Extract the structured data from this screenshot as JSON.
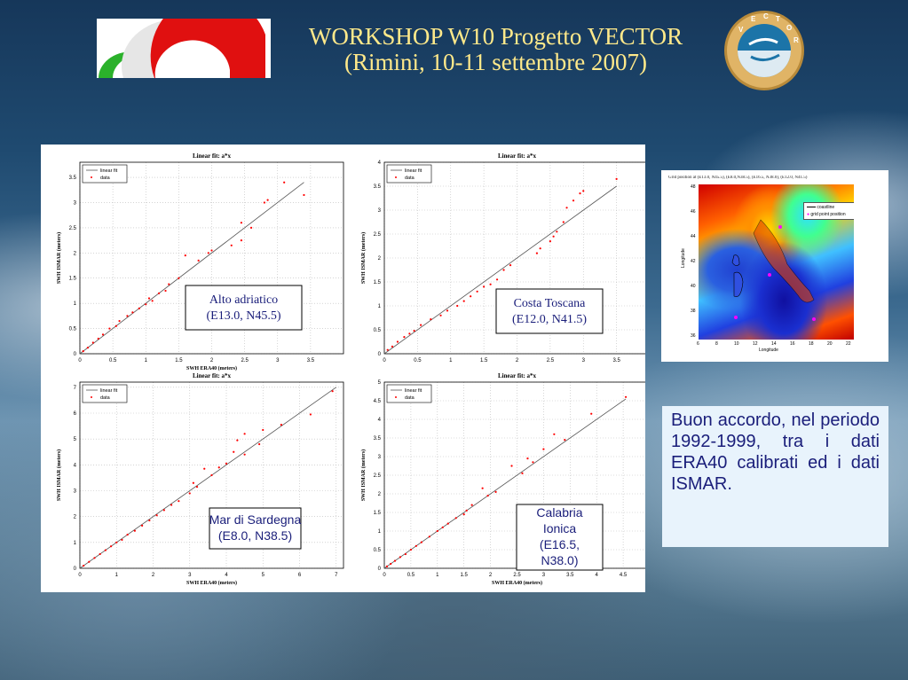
{
  "header": {
    "title_line1": "WORKSHOP W10  Progetto VECTOR",
    "title_line2": "(Rimini, 10-11 settembre 2007)",
    "logo_right_letters": [
      "V",
      "E",
      "C",
      "T",
      "O",
      "R"
    ]
  },
  "colors": {
    "title": "#ffe98a",
    "data_points": "#ff0000",
    "fit_line": "#555555",
    "body_text": "#1a1e7a",
    "text_box_bg": "#e8f3fc"
  },
  "chart_data": [
    {
      "type": "scatter",
      "title": "Linear fit: a*x",
      "xlabel": "SWH ERA40 (meters)",
      "ylabel": "SWH ISMAR (meters)",
      "legend": [
        "linear fit",
        "data"
      ],
      "legend_position": "top-left",
      "grid": true,
      "annotation_line1": "Alto adriatico",
      "annotation_line2": "(E13.0, N45.5)",
      "annotation_font": "serif",
      "xlim": [
        0,
        4
      ],
      "ylim": [
        0,
        3.8
      ],
      "xticks": [
        "0",
        "0.5",
        "1",
        "1.5",
        "2",
        "2.5",
        "3",
        "3.5"
      ],
      "yticks": [
        "0",
        "0.5",
        "1",
        "1.5",
        "2",
        "2.5",
        "3",
        "3.5"
      ],
      "fit": [
        [
          0,
          0
        ],
        [
          3.4,
          3.4
        ]
      ],
      "points": [
        [
          0.05,
          0.05
        ],
        [
          0.12,
          0.12
        ],
        [
          0.2,
          0.22
        ],
        [
          0.28,
          0.3
        ],
        [
          0.35,
          0.38
        ],
        [
          0.45,
          0.5
        ],
        [
          0.55,
          0.55
        ],
        [
          0.6,
          0.65
        ],
        [
          0.72,
          0.75
        ],
        [
          0.8,
          0.82
        ],
        [
          0.9,
          0.9
        ],
        [
          1.0,
          0.98
        ],
        [
          1.05,
          1.1
        ],
        [
          1.1,
          1.05
        ],
        [
          1.2,
          1.2
        ],
        [
          1.3,
          1.25
        ],
        [
          1.35,
          1.38
        ],
        [
          1.5,
          1.5
        ],
        [
          1.6,
          1.95
        ],
        [
          1.8,
          1.85
        ],
        [
          1.95,
          2.0
        ],
        [
          2.0,
          2.05
        ],
        [
          2.3,
          2.15
        ],
        [
          2.45,
          2.25
        ],
        [
          2.45,
          2.6
        ],
        [
          2.6,
          2.5
        ],
        [
          2.8,
          3.0
        ],
        [
          2.85,
          3.05
        ],
        [
          3.1,
          3.4
        ],
        [
          3.4,
          3.15
        ]
      ]
    },
    {
      "type": "scatter",
      "title": "Linear fit: a*x",
      "xlabel": "",
      "ylabel": "SWH ISMAR (meters)",
      "legend": [
        "linear fit",
        "data"
      ],
      "legend_position": "top-left",
      "grid": true,
      "annotation_line1": "Costa Toscana",
      "annotation_line2": "(E12.0, N41.5)",
      "annotation_font": "serif",
      "xlim": [
        0,
        4
      ],
      "ylim": [
        0,
        4
      ],
      "xticks": [
        "0",
        "0.5",
        "1",
        "1.5",
        "2",
        "2.5",
        "3",
        "3.5",
        "4"
      ],
      "yticks": [
        "0",
        "0.5",
        "1",
        "1.5",
        "2",
        "2.5",
        "3",
        "3.5",
        "4"
      ],
      "fit": [
        [
          0,
          0
        ],
        [
          3.5,
          3.5
        ]
      ],
      "points": [
        [
          0.05,
          0.08
        ],
        [
          0.12,
          0.15
        ],
        [
          0.2,
          0.25
        ],
        [
          0.3,
          0.35
        ],
        [
          0.38,
          0.42
        ],
        [
          0.45,
          0.48
        ],
        [
          0.55,
          0.6
        ],
        [
          0.7,
          0.72
        ],
        [
          0.85,
          0.8
        ],
        [
          0.95,
          0.9
        ],
        [
          1.1,
          1.0
        ],
        [
          1.2,
          1.1
        ],
        [
          1.3,
          1.2
        ],
        [
          1.4,
          1.3
        ],
        [
          1.5,
          1.4
        ],
        [
          1.6,
          1.45
        ],
        [
          1.7,
          1.55
        ],
        [
          1.8,
          1.75
        ],
        [
          1.9,
          1.85
        ],
        [
          2.3,
          2.1
        ],
        [
          2.35,
          2.2
        ],
        [
          2.5,
          2.35
        ],
        [
          2.55,
          2.45
        ],
        [
          2.6,
          2.55
        ],
        [
          2.7,
          2.75
        ],
        [
          2.75,
          3.05
        ],
        [
          2.85,
          3.2
        ],
        [
          2.95,
          3.35
        ],
        [
          3.0,
          3.4
        ],
        [
          3.5,
          3.65
        ]
      ]
    },
    {
      "type": "scatter",
      "title": "Linear fit: a*x",
      "xlabel": "SWH ERA40 (meters)",
      "ylabel": "SWH ISMAR (meters)",
      "legend": [
        "linear fit",
        "data"
      ],
      "legend_position": "top-left",
      "grid": true,
      "annotation_line1": "Mar di Sardegna",
      "annotation_line2": "(E8.0, N38.5)",
      "annotation_font": "sans-serif",
      "xlim": [
        0,
        7.2
      ],
      "ylim": [
        0,
        7.2
      ],
      "xticks": [
        "0",
        "1",
        "2",
        "3",
        "4",
        "5",
        "6",
        "7"
      ],
      "yticks": [
        "0",
        "1",
        "2",
        "3",
        "4",
        "5",
        "6",
        "7"
      ],
      "fit": [
        [
          0,
          0
        ],
        [
          7,
          7
        ]
      ],
      "points": [
        [
          0.1,
          0.1
        ],
        [
          0.25,
          0.25
        ],
        [
          0.4,
          0.4
        ],
        [
          0.55,
          0.55
        ],
        [
          0.7,
          0.7
        ],
        [
          0.85,
          0.85
        ],
        [
          1.0,
          1.0
        ],
        [
          1.15,
          1.1
        ],
        [
          1.3,
          1.3
        ],
        [
          1.5,
          1.45
        ],
        [
          1.7,
          1.65
        ],
        [
          1.9,
          1.85
        ],
        [
          2.1,
          2.05
        ],
        [
          2.3,
          2.25
        ],
        [
          2.5,
          2.45
        ],
        [
          2.7,
          2.6
        ],
        [
          3.0,
          2.9
        ],
        [
          3.1,
          3.3
        ],
        [
          3.2,
          3.15
        ],
        [
          3.4,
          3.85
        ],
        [
          3.6,
          3.6
        ],
        [
          3.8,
          3.9
        ],
        [
          4.0,
          4.05
        ],
        [
          4.2,
          4.5
        ],
        [
          4.3,
          4.95
        ],
        [
          4.5,
          4.4
        ],
        [
          4.5,
          5.2
        ],
        [
          4.9,
          4.8
        ],
        [
          5.0,
          5.35
        ],
        [
          5.5,
          5.55
        ],
        [
          6.3,
          5.95
        ],
        [
          6.9,
          6.85
        ]
      ]
    },
    {
      "type": "scatter",
      "title": "Linear fit: a*x",
      "xlabel": "SWH ERA40 (meters)",
      "ylabel": "SWH ISMAR (meters)",
      "legend": [
        "linear fit",
        "data"
      ],
      "legend_position": "top-left",
      "grid": true,
      "annotation_line1": "Calabria",
      "annotation_line2": "Ionica",
      "annotation_line3": "(E16.5,",
      "annotation_line4": "N38.0)",
      "annotation_font": "sans-serif",
      "xlim": [
        0,
        5
      ],
      "ylim": [
        0,
        5
      ],
      "xticks": [
        "0",
        "0.5",
        "1",
        "1.5",
        "2",
        "2.5",
        "3",
        "3.5",
        "4",
        "4.5",
        "5"
      ],
      "yticks": [
        "0",
        "0.5",
        "1",
        "1.5",
        "2",
        "2.5",
        "3",
        "3.5",
        "4",
        "4.5",
        "5"
      ],
      "fit": [
        [
          0,
          0
        ],
        [
          4.55,
          4.55
        ]
      ],
      "points": [
        [
          0.05,
          0.05
        ],
        [
          0.12,
          0.12
        ],
        [
          0.2,
          0.2
        ],
        [
          0.3,
          0.3
        ],
        [
          0.4,
          0.38
        ],
        [
          0.5,
          0.5
        ],
        [
          0.6,
          0.6
        ],
        [
          0.7,
          0.7
        ],
        [
          0.85,
          0.85
        ],
        [
          1.0,
          1.0
        ],
        [
          1.1,
          1.1
        ],
        [
          1.2,
          1.2
        ],
        [
          1.35,
          1.35
        ],
        [
          1.5,
          1.45
        ],
        [
          1.55,
          1.55
        ],
        [
          1.65,
          1.7
        ],
        [
          1.85,
          2.15
        ],
        [
          1.95,
          1.95
        ],
        [
          2.1,
          2.05
        ],
        [
          2.4,
          2.75
        ],
        [
          2.6,
          2.55
        ],
        [
          2.7,
          2.95
        ],
        [
          2.8,
          2.85
        ],
        [
          3.0,
          3.2
        ],
        [
          3.2,
          3.6
        ],
        [
          3.4,
          3.45
        ],
        [
          3.9,
          4.15
        ],
        [
          4.55,
          4.6
        ]
      ]
    }
  ],
  "map": {
    "title": "Grid position at (E13.0, N45.5), (E8.0,N38.5), (E16.5, N38.0), (E12.0, N41.5)",
    "legend_coastline": "coastline",
    "legend_grid": "grid point position",
    "xlabel": "Longitude",
    "ylabel": "Longitude",
    "xticks": [
      "6",
      "8",
      "10",
      "12",
      "14",
      "16",
      "18",
      "20",
      "22"
    ],
    "yticks": [
      "48",
      "46",
      "44",
      "42",
      "40",
      "38",
      "36"
    ]
  },
  "text_box": {
    "body": "Buon accordo, nel periodo 1992-1999, tra i dati ERA40 calibrati ed i dati ISMAR."
  }
}
